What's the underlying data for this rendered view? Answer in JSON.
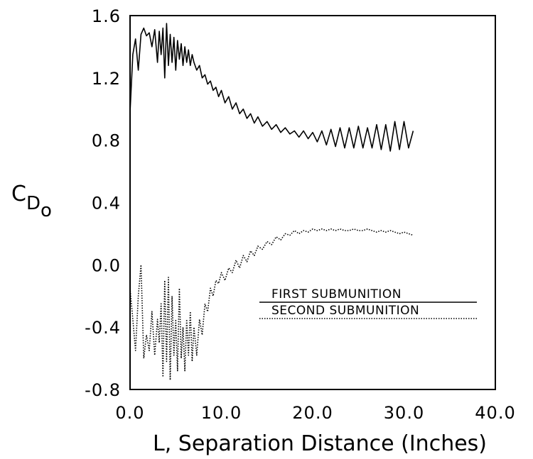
{
  "chart_data": {
    "type": "line",
    "xlabel": "L, Separation Distance (Inches)",
    "ylabel": {
      "main": "C",
      "sub": "D",
      "subsub": "o"
    },
    "xlim": [
      0,
      40
    ],
    "ylim": [
      -0.8,
      1.6
    ],
    "x_ticks": [
      "0.0",
      "10.0",
      "20.0",
      "30.0",
      "40.0"
    ],
    "y_ticks": [
      "-0.8",
      "-0.4",
      "0.0",
      "0.4",
      "0.8",
      "1.2",
      "1.6"
    ],
    "grid": false,
    "legend_position": "center-right",
    "series": [
      {
        "name": "FIRST SUBMUNITION",
        "style": "solid",
        "x": [
          0.0,
          0.3,
          0.6,
          0.9,
          1.2,
          1.5,
          1.8,
          2.1,
          2.4,
          2.7,
          3.0,
          3.2,
          3.4,
          3.6,
          3.8,
          4.0,
          4.2,
          4.4,
          4.6,
          4.8,
          5.0,
          5.2,
          5.4,
          5.6,
          5.8,
          6.0,
          6.2,
          6.4,
          6.6,
          6.8,
          7.0,
          7.3,
          7.6,
          7.9,
          8.2,
          8.5,
          8.8,
          9.1,
          9.4,
          9.7,
          10.0,
          10.4,
          10.8,
          11.2,
          11.6,
          12.0,
          12.4,
          12.8,
          13.2,
          13.6,
          14.0,
          14.5,
          15.0,
          15.5,
          16.0,
          16.5,
          17.0,
          17.5,
          18.0,
          18.5,
          19.0,
          19.5,
          20.0,
          20.5,
          21.0,
          21.5,
          22.0,
          22.5,
          23.0,
          23.5,
          24.0,
          24.5,
          25.0,
          25.5,
          26.0,
          26.5,
          27.0,
          27.5,
          28.0,
          28.5,
          29.0,
          29.5,
          30.0,
          30.5,
          31.0
        ],
        "y": [
          0.98,
          1.35,
          1.45,
          1.25,
          1.48,
          1.52,
          1.47,
          1.49,
          1.4,
          1.51,
          1.3,
          1.5,
          1.35,
          1.52,
          1.2,
          1.55,
          1.28,
          1.48,
          1.3,
          1.46,
          1.25,
          1.44,
          1.32,
          1.42,
          1.28,
          1.4,
          1.3,
          1.38,
          1.28,
          1.35,
          1.3,
          1.25,
          1.28,
          1.2,
          1.22,
          1.16,
          1.18,
          1.12,
          1.14,
          1.08,
          1.12,
          1.04,
          1.08,
          1.0,
          1.04,
          0.97,
          1.0,
          0.94,
          0.97,
          0.91,
          0.95,
          0.89,
          0.92,
          0.87,
          0.9,
          0.85,
          0.88,
          0.84,
          0.86,
          0.82,
          0.86,
          0.81,
          0.85,
          0.79,
          0.86,
          0.77,
          0.87,
          0.76,
          0.88,
          0.75,
          0.88,
          0.75,
          0.89,
          0.75,
          0.88,
          0.75,
          0.9,
          0.74,
          0.9,
          0.73,
          0.92,
          0.74,
          0.92,
          0.75,
          0.86
        ]
      },
      {
        "name": "SECOND SUBMUNITION",
        "style": "dotted",
        "x": [
          0.0,
          0.3,
          0.6,
          0.9,
          1.2,
          1.5,
          1.8,
          2.1,
          2.4,
          2.7,
          3.0,
          3.2,
          3.4,
          3.6,
          3.8,
          4.0,
          4.2,
          4.4,
          4.6,
          4.8,
          5.0,
          5.2,
          5.4,
          5.6,
          5.8,
          6.0,
          6.2,
          6.4,
          6.6,
          6.8,
          7.0,
          7.3,
          7.6,
          7.9,
          8.2,
          8.5,
          8.8,
          9.1,
          9.4,
          9.7,
          10.0,
          10.4,
          10.8,
          11.2,
          11.6,
          12.0,
          12.4,
          12.8,
          13.2,
          13.6,
          14.0,
          14.5,
          15.0,
          15.5,
          16.0,
          16.5,
          17.0,
          17.5,
          18.0,
          18.5,
          19.0,
          19.5,
          20.0,
          20.5,
          21.0,
          21.5,
          22.0,
          22.5,
          23.0,
          23.5,
          24.0,
          24.5,
          25.0,
          25.5,
          26.0,
          26.5,
          27.0,
          27.5,
          28.0,
          28.5,
          29.0,
          29.5,
          30.0,
          30.5,
          31.0
        ],
        "y": [
          -0.15,
          -0.35,
          -0.55,
          -0.2,
          0.0,
          -0.6,
          -0.45,
          -0.55,
          -0.3,
          -0.58,
          -0.35,
          -0.5,
          -0.25,
          -0.72,
          -0.1,
          -0.62,
          -0.08,
          -0.74,
          -0.2,
          -0.58,
          -0.35,
          -0.68,
          -0.15,
          -0.6,
          -0.4,
          -0.68,
          -0.35,
          -0.58,
          -0.3,
          -0.62,
          -0.4,
          -0.58,
          -0.35,
          -0.45,
          -0.25,
          -0.3,
          -0.15,
          -0.2,
          -0.1,
          -0.12,
          -0.05,
          -0.1,
          -0.02,
          -0.05,
          0.03,
          -0.02,
          0.06,
          0.02,
          0.09,
          0.06,
          0.12,
          0.1,
          0.15,
          0.13,
          0.18,
          0.16,
          0.2,
          0.19,
          0.22,
          0.2,
          0.22,
          0.21,
          0.23,
          0.22,
          0.23,
          0.22,
          0.23,
          0.22,
          0.23,
          0.22,
          0.22,
          0.23,
          0.22,
          0.22,
          0.23,
          0.22,
          0.21,
          0.22,
          0.21,
          0.22,
          0.21,
          0.2,
          0.21,
          0.2,
          0.19
        ]
      }
    ]
  }
}
